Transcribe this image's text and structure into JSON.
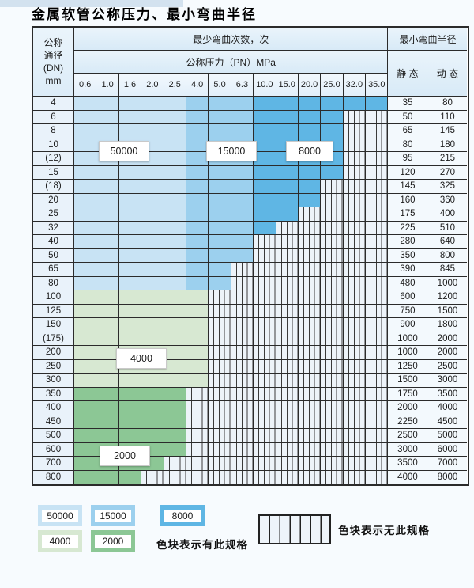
{
  "title": "金属软管公称压力、最小弯曲半径",
  "table": {
    "header": {
      "dn_label_lines": [
        "公称",
        "通径",
        "(DN)",
        "mm"
      ],
      "bend_times_label": "最少弯曲次数，次",
      "pressure_label": "公称压力（PN）MPa",
      "pressure_columns": [
        "0.6",
        "1.0",
        "1.6",
        "2.0",
        "2.5",
        "4.0",
        "5.0",
        "6.3",
        "10.0",
        "15.0",
        "20.0",
        "25.0",
        "32.0",
        "35.0"
      ],
      "radius_label": "最小弯曲半径",
      "static_label": "静 态",
      "dynamic_label": "动 态"
    },
    "blue_shades": {
      "light_max_col": 5,
      "medium_max_col": 8
    },
    "rows": [
      {
        "dn": "4",
        "colored_cols": 14,
        "palette": "blue",
        "static": "35",
        "dynamic": "80"
      },
      {
        "dn": "6",
        "colored_cols": 12,
        "palette": "blue",
        "static": "50",
        "dynamic": "110"
      },
      {
        "dn": "8",
        "colored_cols": 12,
        "palette": "blue",
        "static": "65",
        "dynamic": "145"
      },
      {
        "dn": "10",
        "colored_cols": 12,
        "palette": "blue",
        "static": "80",
        "dynamic": "180"
      },
      {
        "dn": "(12)",
        "colored_cols": 12,
        "palette": "blue",
        "static": "95",
        "dynamic": "215"
      },
      {
        "dn": "15",
        "colored_cols": 12,
        "palette": "blue",
        "static": "120",
        "dynamic": "270"
      },
      {
        "dn": "(18)",
        "colored_cols": 11,
        "palette": "blue",
        "static": "145",
        "dynamic": "325"
      },
      {
        "dn": "20",
        "colored_cols": 11,
        "palette": "blue",
        "static": "160",
        "dynamic": "360"
      },
      {
        "dn": "25",
        "colored_cols": 10,
        "palette": "blue",
        "static": "175",
        "dynamic": "400"
      },
      {
        "dn": "32",
        "colored_cols": 9,
        "palette": "blue",
        "static": "225",
        "dynamic": "510"
      },
      {
        "dn": "40",
        "colored_cols": 8,
        "palette": "blue",
        "static": "280",
        "dynamic": "640"
      },
      {
        "dn": "50",
        "colored_cols": 8,
        "palette": "blue",
        "static": "350",
        "dynamic": "800"
      },
      {
        "dn": "65",
        "colored_cols": 7,
        "palette": "blue",
        "static": "390",
        "dynamic": "845"
      },
      {
        "dn": "80",
        "colored_cols": 7,
        "palette": "blue",
        "static": "480",
        "dynamic": "1000"
      },
      {
        "dn": "100",
        "colored_cols": 6,
        "palette": "green-light",
        "static": "600",
        "dynamic": "1200"
      },
      {
        "dn": "125",
        "colored_cols": 6,
        "palette": "green-light",
        "static": "750",
        "dynamic": "1500"
      },
      {
        "dn": "150",
        "colored_cols": 6,
        "palette": "green-light",
        "static": "900",
        "dynamic": "1800"
      },
      {
        "dn": "(175)",
        "colored_cols": 6,
        "palette": "green-light",
        "static": "1000",
        "dynamic": "2000"
      },
      {
        "dn": "200",
        "colored_cols": 6,
        "palette": "green-light",
        "static": "1000",
        "dynamic": "2000"
      },
      {
        "dn": "250",
        "colored_cols": 6,
        "palette": "green-light",
        "static": "1250",
        "dynamic": "2500"
      },
      {
        "dn": "300",
        "colored_cols": 6,
        "palette": "green-light",
        "static": "1500",
        "dynamic": "3000"
      },
      {
        "dn": "350",
        "colored_cols": 5,
        "palette": "green-dark",
        "static": "1750",
        "dynamic": "3500"
      },
      {
        "dn": "400",
        "colored_cols": 5,
        "palette": "green-dark",
        "static": "2000",
        "dynamic": "4000"
      },
      {
        "dn": "450",
        "colored_cols": 5,
        "palette": "green-dark",
        "static": "2250",
        "dynamic": "4500"
      },
      {
        "dn": "500",
        "colored_cols": 5,
        "palette": "green-dark",
        "static": "2500",
        "dynamic": "5000"
      },
      {
        "dn": "600",
        "colored_cols": 5,
        "palette": "green-dark",
        "static": "3000",
        "dynamic": "6000"
      },
      {
        "dn": "700",
        "colored_cols": 4,
        "palette": "green-dark",
        "static": "3500",
        "dynamic": "7000"
      },
      {
        "dn": "800",
        "colored_cols": 3,
        "palette": "green-dark",
        "static": "4000",
        "dynamic": "8000"
      }
    ],
    "overlay_labels": [
      {
        "text": "50000"
      },
      {
        "text": "15000"
      },
      {
        "text": "8000"
      },
      {
        "text": "4000"
      },
      {
        "text": "2000"
      }
    ]
  },
  "legend": {
    "swatches": [
      {
        "label": "50000",
        "color": "#c8e3f4"
      },
      {
        "label": "15000",
        "color": "#9cd0ee"
      },
      {
        "label": "8000",
        "color": "#5fb6e4"
      },
      {
        "label": "4000",
        "color": "#d7e8d2"
      },
      {
        "label": "2000",
        "color": "#8cc795"
      }
    ],
    "has_spec_text": "色块表示有此规格",
    "no_spec_text": "色块表示无此规格"
  },
  "colors": {
    "blue_light": "#c8e3f4",
    "blue_medium": "#9cd0ee",
    "blue_dark": "#5fb6e4",
    "green_light": "#d7e8d2",
    "green_dark": "#8cc795"
  }
}
